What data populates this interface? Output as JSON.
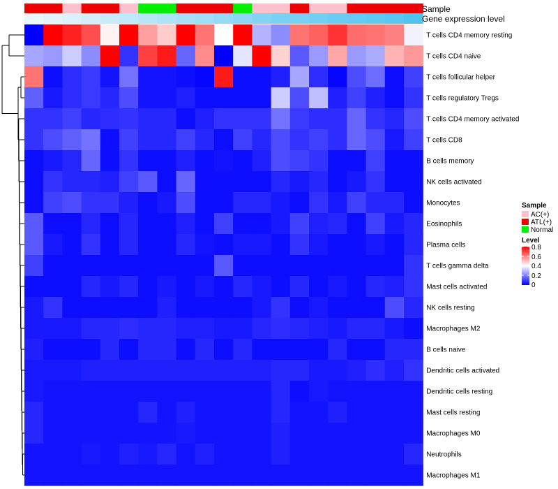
{
  "chart_data": {
    "type": "heatmap",
    "title": "",
    "color_scale": {
      "min": 0,
      "mid": 0.4,
      "max": 0.8,
      "low": "#0000ff",
      "mid_color": "#ffffff",
      "high": "#ff0000"
    },
    "annotation_tracks": [
      {
        "name": "Sample",
        "values": [
          "ATL(+)",
          "ATL(+)",
          "AC(+)",
          "ATL(+)",
          "ATL(+)",
          "AC(+)",
          "Normal",
          "Normal",
          "ATL(+)",
          "ATL(+)",
          "ATL(+)",
          "Normal",
          "AC(+)",
          "AC(+)",
          "ATL(+)",
          "AC(+)",
          "AC(+)",
          "ATL(+)",
          "ATL(+)",
          "ATL(+)",
          "ATL(+)"
        ]
      },
      {
        "name": "Gene expression level",
        "values": [
          0.05,
          0.1,
          0.15,
          0.2,
          0.25,
          0.3,
          0.35,
          0.4,
          0.45,
          0.5,
          0.55,
          0.6,
          0.65,
          0.7,
          0.72,
          0.75,
          0.8,
          0.82,
          0.85,
          0.9,
          0.95
        ]
      }
    ],
    "rows": [
      {
        "label": "T cells CD4 memory resting",
        "values": [
          0.0,
          0.8,
          0.75,
          0.68,
          0.42,
          0.8,
          0.55,
          0.48,
          0.8,
          0.62,
          0.4,
          0.8,
          0.28,
          0.22,
          0.62,
          0.65,
          0.72,
          0.63,
          0.62,
          0.6,
          0.38
        ]
      },
      {
        "label": "T cells CD4 naive",
        "values": [
          0.26,
          0.24,
          0.32,
          0.22,
          0.8,
          0.08,
          0.7,
          0.76,
          0.16,
          0.58,
          0.0,
          0.36,
          0.8,
          0.47,
          0.14,
          0.24,
          0.54,
          0.24,
          0.27,
          0.52,
          0.56
        ]
      },
      {
        "label": "T cells follicular helper",
        "values": [
          0.62,
          0.02,
          0.07,
          0.09,
          0.03,
          0.18,
          0.03,
          0.03,
          0.02,
          0.01,
          0.76,
          0.02,
          0.02,
          0.05,
          0.26,
          0.07,
          0.01,
          0.12,
          0.17,
          0.02,
          0.1
        ]
      },
      {
        "label": "T cells regulatory  Tregs",
        "values": [
          0.15,
          0.04,
          0.07,
          0.09,
          0.06,
          0.12,
          0.03,
          0.03,
          0.05,
          0.02,
          0.02,
          0.02,
          0.02,
          0.32,
          0.12,
          0.3,
          0.05,
          0.1,
          0.05,
          0.02,
          0.08
        ]
      },
      {
        "label": "T cells CD4 memory activated",
        "values": [
          0.08,
          0.08,
          0.1,
          0.06,
          0.07,
          0.08,
          0.06,
          0.06,
          0.02,
          0.05,
          0.08,
          0.08,
          0.08,
          0.18,
          0.09,
          0.07,
          0.07,
          0.16,
          0.08,
          0.06,
          0.12
        ]
      },
      {
        "label": "T cells CD8",
        "values": [
          0.08,
          0.12,
          0.15,
          0.18,
          0.02,
          0.1,
          0.06,
          0.06,
          0.1,
          0.06,
          0.02,
          0.1,
          0.06,
          0.12,
          0.08,
          0.1,
          0.07,
          0.16,
          0.12,
          0.04,
          0.1
        ]
      },
      {
        "label": "B cells memory",
        "values": [
          0.02,
          0.04,
          0.06,
          0.16,
          0.02,
          0.08,
          0.02,
          0.02,
          0.05,
          0.02,
          0.03,
          0.02,
          0.05,
          0.12,
          0.1,
          0.08,
          0.02,
          0.02,
          0.1,
          0.02,
          0.02
        ]
      },
      {
        "label": "NK cells activated",
        "values": [
          0.02,
          0.08,
          0.06,
          0.06,
          0.05,
          0.1,
          0.14,
          0.02,
          0.16,
          0.02,
          0.02,
          0.02,
          0.02,
          0.06,
          0.04,
          0.06,
          0.02,
          0.04,
          0.08,
          0.02,
          0.02
        ]
      },
      {
        "label": "Monocytes",
        "values": [
          0.02,
          0.1,
          0.12,
          0.08,
          0.08,
          0.05,
          0.02,
          0.04,
          0.12,
          0.02,
          0.02,
          0.06,
          0.06,
          0.04,
          0.02,
          0.08,
          0.04,
          0.1,
          0.06,
          0.06,
          0.02
        ]
      },
      {
        "label": "Eosinophils",
        "values": [
          0.14,
          0.02,
          0.02,
          0.06,
          0.02,
          0.06,
          0.02,
          0.02,
          0.05,
          0.02,
          0.1,
          0.02,
          0.02,
          0.04,
          0.1,
          0.05,
          0.06,
          0.02,
          0.1,
          0.04,
          0.06
        ]
      },
      {
        "label": "Plasma cells",
        "values": [
          0.14,
          0.04,
          0.02,
          0.08,
          0.02,
          0.06,
          0.02,
          0.02,
          0.06,
          0.03,
          0.02,
          0.04,
          0.04,
          0.02,
          0.08,
          0.04,
          0.02,
          0.02,
          0.04,
          0.02,
          0.06
        ]
      },
      {
        "label": "T cells gamma delta",
        "values": [
          0.1,
          0.02,
          0.02,
          0.02,
          0.02,
          0.02,
          0.02,
          0.02,
          0.02,
          0.02,
          0.14,
          0.02,
          0.02,
          0.02,
          0.02,
          0.02,
          0.02,
          0.02,
          0.02,
          0.02,
          0.08
        ]
      },
      {
        "label": "Mast cells activated",
        "values": [
          0.02,
          0.02,
          0.02,
          0.06,
          0.04,
          0.06,
          0.02,
          0.04,
          0.02,
          0.04,
          0.02,
          0.06,
          0.04,
          0.02,
          0.06,
          0.02,
          0.04,
          0.02,
          0.06,
          0.05,
          0.08
        ]
      },
      {
        "label": "NK cells resting",
        "values": [
          0.04,
          0.08,
          0.02,
          0.02,
          0.02,
          0.02,
          0.02,
          0.05,
          0.02,
          0.02,
          0.02,
          0.02,
          0.04,
          0.08,
          0.02,
          0.04,
          0.02,
          0.02,
          0.02,
          0.12,
          0.06
        ]
      },
      {
        "label": "Macrophages M2",
        "values": [
          0.04,
          0.04,
          0.04,
          0.06,
          0.06,
          0.07,
          0.06,
          0.06,
          0.05,
          0.05,
          0.04,
          0.04,
          0.06,
          0.07,
          0.06,
          0.05,
          0.04,
          0.06,
          0.06,
          0.04,
          0.02
        ]
      },
      {
        "label": "B cells naive",
        "values": [
          0.05,
          0.02,
          0.02,
          0.02,
          0.06,
          0.02,
          0.06,
          0.06,
          0.02,
          0.06,
          0.02,
          0.06,
          0.02,
          0.02,
          0.02,
          0.02,
          0.06,
          0.02,
          0.02,
          0.06,
          0.06
        ]
      },
      {
        "label": "Dendritic cells activated",
        "values": [
          0.04,
          0.04,
          0.04,
          0.05,
          0.05,
          0.05,
          0.05,
          0.05,
          0.05,
          0.05,
          0.05,
          0.05,
          0.05,
          0.06,
          0.06,
          0.04,
          0.04,
          0.05,
          0.07,
          0.05,
          0.08
        ]
      },
      {
        "label": "Dendritic cells resting",
        "values": [
          0.04,
          0.03,
          0.03,
          0.03,
          0.03,
          0.03,
          0.03,
          0.03,
          0.03,
          0.03,
          0.03,
          0.03,
          0.03,
          0.06,
          0.02,
          0.04,
          0.03,
          0.03,
          0.03,
          0.03,
          0.03
        ]
      },
      {
        "label": "Mast cells resting",
        "values": [
          0.06,
          0.03,
          0.03,
          0.03,
          0.03,
          0.03,
          0.06,
          0.03,
          0.05,
          0.03,
          0.03,
          0.03,
          0.03,
          0.06,
          0.03,
          0.03,
          0.05,
          0.03,
          0.03,
          0.03,
          0.03
        ]
      },
      {
        "label": "Macrophages M0",
        "values": [
          0.06,
          0.03,
          0.03,
          0.03,
          0.03,
          0.03,
          0.03,
          0.03,
          0.04,
          0.03,
          0.03,
          0.03,
          0.03,
          0.05,
          0.03,
          0.03,
          0.03,
          0.03,
          0.03,
          0.03,
          0.03
        ]
      },
      {
        "label": "Neutrophils",
        "values": [
          0.03,
          0.03,
          0.03,
          0.04,
          0.03,
          0.05,
          0.04,
          0.06,
          0.03,
          0.05,
          0.03,
          0.03,
          0.03,
          0.05,
          0.03,
          0.03,
          0.03,
          0.03,
          0.03,
          0.03,
          0.06
        ]
      },
      {
        "label": "Macrophages M1",
        "values": [
          0.03,
          0.03,
          0.03,
          0.03,
          0.03,
          0.03,
          0.03,
          0.03,
          0.03,
          0.03,
          0.03,
          0.03,
          0.03,
          0.03,
          0.03,
          0.03,
          0.03,
          0.03,
          0.03,
          0.03,
          0.03
        ]
      }
    ],
    "legends": {
      "sample": {
        "title": "Sample",
        "entries": [
          {
            "label": "AC(+)",
            "color": "#ffc0cb"
          },
          {
            "label": "ATL(+)",
            "color": "#ee0000"
          },
          {
            "label": "Normal",
            "color": "#00ee00"
          }
        ]
      },
      "level": {
        "title": "Level",
        "ticks": [
          "0.8",
          "0.6",
          "0.4",
          "0.2",
          "0"
        ]
      }
    }
  }
}
